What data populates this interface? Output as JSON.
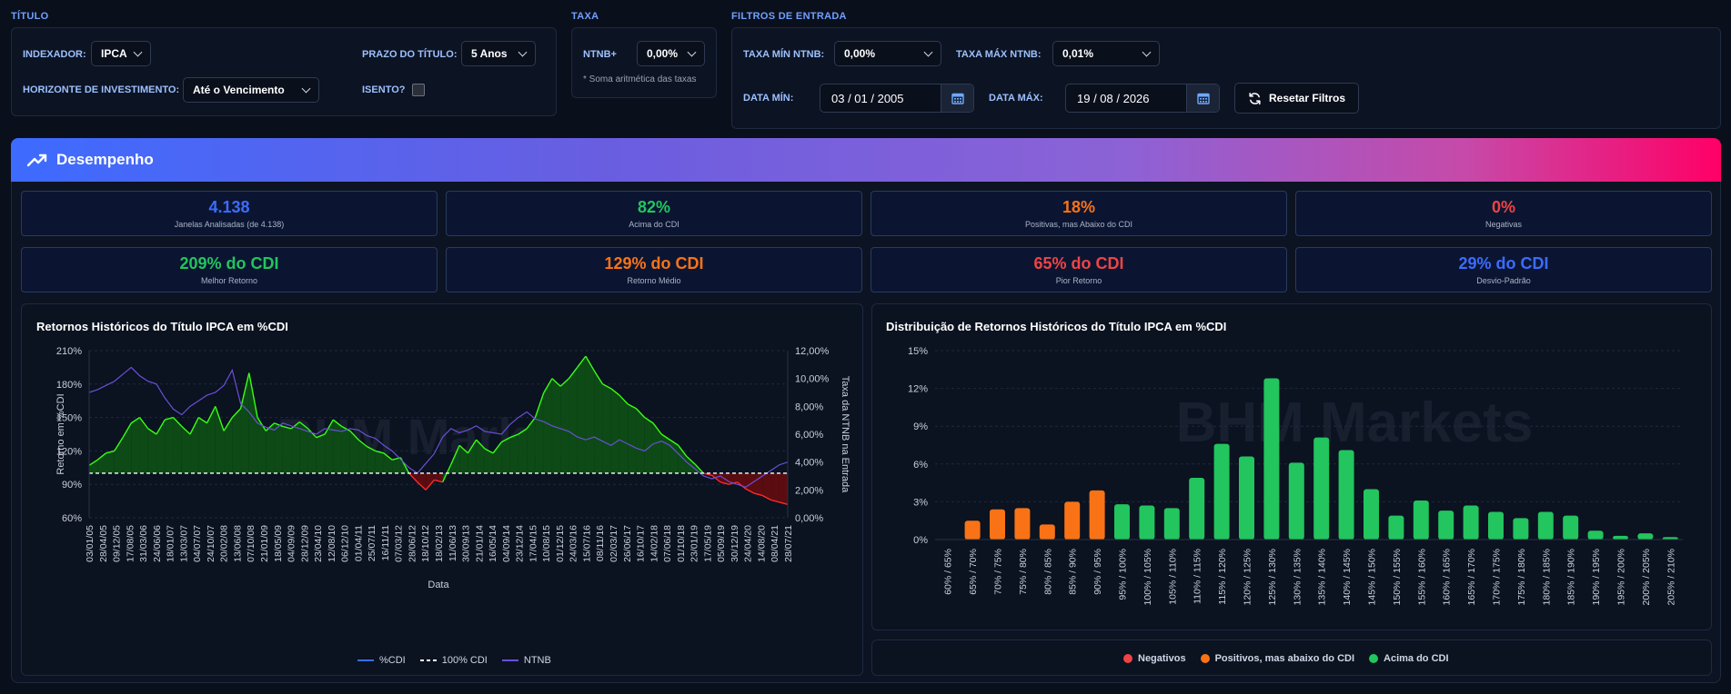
{
  "filters": {
    "titulo": {
      "section": "TÍTULO",
      "indexador_label": "INDEXADOR:",
      "indexador_value": "IPCA",
      "prazo_label": "PRAZO DO TÍTULO:",
      "prazo_value": "5 Anos",
      "horizonte_label": "HORIZONTE DE INVESTIMENTO:",
      "horizonte_value": "Até o Vencimento",
      "isento_label": "ISENTO?"
    },
    "taxa": {
      "section": "TAXA",
      "ntnb_label": "NTNB+",
      "ntnb_value": "0,00%",
      "note": "* Soma aritmética das taxas"
    },
    "entrada": {
      "section": "FILTROS DE ENTRADA",
      "taxa_min_label": "TAXA MÍN NTNB:",
      "taxa_min_value": "0,00%",
      "taxa_max_label": "TAXA MÁX NTNB:",
      "taxa_max_value": "0,01%",
      "data_min_label": "DATA MÍN:",
      "data_min_value": "03 / 01 / 2005",
      "data_max_label": "DATA MÁX:",
      "data_max_value": "19 / 08 / 2026",
      "reset_label": "Resetar Filtros"
    }
  },
  "banner": {
    "title": "Desempenho"
  },
  "stats": [
    {
      "value": "4.138",
      "label": "Janelas Analisadas (de 4.138)",
      "color": "#3b6cff"
    },
    {
      "value": "82%",
      "label": "Acima do CDI",
      "color": "#22c55e"
    },
    {
      "value": "18%",
      "label": "Positivas, mas Abaixo do CDI",
      "color": "#f97316"
    },
    {
      "value": "0%",
      "label": "Negativas",
      "color": "#ef4444"
    },
    {
      "value": "209% do CDI",
      "label": "Melhor Retorno",
      "color": "#22c55e"
    },
    {
      "value": "129% do CDI",
      "label": "Retorno Médio",
      "color": "#f97316"
    },
    {
      "value": "65% do CDI",
      "label": "Pior Retorno",
      "color": "#ef4444"
    },
    {
      "value": "29% do CDI",
      "label": "Desvio-Padrão",
      "color": "#3b6cff"
    }
  ],
  "watermark": "BHM Markets",
  "chart_data": [
    {
      "type": "line",
      "title": "Retornos Históricos do Título IPCA em %CDI",
      "xlabel": "Data",
      "ylabel": "Retorno em %CDI",
      "y2label": "Taxa da NTNB na Entrada",
      "ylim": [
        60,
        210
      ],
      "y2lim": [
        0,
        12
      ],
      "yticks": [
        "210%",
        "180%",
        "150%",
        "120%",
        "90%",
        "60%"
      ],
      "y2ticks": [
        "12,00%",
        "10,00%",
        "8,00%",
        "6,00%",
        "4,00%",
        "2,00%",
        "0,00%"
      ],
      "xticks": [
        "03/01/05",
        "28/04/05",
        "09/12/05",
        "17/08/05",
        "31/03/06",
        "24/06/06",
        "18/01/07",
        "13/03/07",
        "04/07/07",
        "24/10/07",
        "20/02/08",
        "13/06/08",
        "07/10/08",
        "21/01/09",
        "18/05/09",
        "04/09/09",
        "28/12/09",
        "23/04/10",
        "12/08/10",
        "06/12/10",
        "01/04/11",
        "25/07/11",
        "16/11/11",
        "07/03/12",
        "28/06/12",
        "18/10/12",
        "18/02/13",
        "11/06/13",
        "30/09/13",
        "21/01/14",
        "16/05/14",
        "04/09/14",
        "23/12/14",
        "17/04/15",
        "10/08/15",
        "01/12/15",
        "24/03/16",
        "15/07/16",
        "08/11/16",
        "02/03/17",
        "26/06/17",
        "16/10/17",
        "14/02/18",
        "07/06/18",
        "01/10/18",
        "23/01/19",
        "17/05/19",
        "05/09/19",
        "30/12/19",
        "24/04/20",
        "14/08/20",
        "08/04/21",
        "28/07/21"
      ],
      "reference_line": 100,
      "legend": [
        "%CDI",
        "100% CDI",
        "NTNB"
      ],
      "series": [
        {
          "name": "%CDI",
          "values": [
            107,
            112,
            118,
            120,
            132,
            145,
            150,
            140,
            135,
            148,
            150,
            142,
            135,
            150,
            145,
            160,
            138,
            150,
            158,
            190,
            150,
            138,
            145,
            142,
            140,
            146,
            140,
            132,
            135,
            148,
            142,
            138,
            130,
            124,
            120,
            118,
            112,
            114,
            100,
            92,
            85,
            94,
            92,
            108,
            125,
            118,
            130,
            122,
            118,
            128,
            132,
            135,
            140,
            150,
            172,
            185,
            178,
            185,
            195,
            205,
            192,
            180,
            176,
            170,
            162,
            158,
            150,
            145,
            135,
            130,
            125,
            115,
            108,
            100,
            98,
            92,
            90,
            92,
            86,
            82,
            80,
            76,
            74,
            72
          ]
        },
        {
          "name": "NTNB",
          "values": [
            9.0,
            9.2,
            9.5,
            9.8,
            10.3,
            10.8,
            10.2,
            9.8,
            9.6,
            8.6,
            7.8,
            7.4,
            8.0,
            8.4,
            8.8,
            9.0,
            9.5,
            10.6,
            8.2,
            7.6,
            6.8,
            6.5,
            6.3,
            6.8,
            6.6,
            6.4,
            6.2,
            6.0,
            6.4,
            6.3,
            6.2,
            6.4,
            6.3,
            5.9,
            5.7,
            5.2,
            4.8,
            4.2,
            3.6,
            3.2,
            3.9,
            4.6,
            5.8,
            6.4,
            6.1,
            6.3,
            6.6,
            6.2,
            6.1,
            6.0,
            6.7,
            7.2,
            7.6,
            7.1,
            6.9,
            6.6,
            6.4,
            6.2,
            5.8,
            5.6,
            5.8,
            5.5,
            5.2,
            5.6,
            5.3,
            5.0,
            4.8,
            5.3,
            5.5,
            5.2,
            4.6,
            4.0,
            3.5,
            3.0,
            2.8,
            3.0,
            2.6,
            2.4,
            2.2,
            2.6,
            3.0,
            3.4,
            3.8,
            4.0
          ]
        }
      ]
    },
    {
      "type": "bar",
      "title": "Distribuição de Retornos Históricos do Título IPCA em %CDI",
      "ylim": [
        0,
        15
      ],
      "yticks": [
        "15%",
        "12%",
        "9%",
        "6%",
        "3%",
        "0%"
      ],
      "categories": [
        "60% / 65%",
        "65% / 70%",
        "70% / 75%",
        "75% / 80%",
        "80% / 85%",
        "85% / 90%",
        "90% / 95%",
        "95% / 100%",
        "100% / 105%",
        "105% / 110%",
        "110% / 115%",
        "115% / 120%",
        "120% / 125%",
        "125% / 130%",
        "130% / 135%",
        "135% / 140%",
        "140% / 145%",
        "145% / 150%",
        "150% / 155%",
        "155% / 160%",
        "160% / 165%",
        "165% / 170%",
        "170% / 175%",
        "175% / 180%",
        "180% / 185%",
        "185% / 190%",
        "190% / 195%",
        "195% / 200%",
        "200% / 205%",
        "205% / 210%"
      ],
      "values": [
        0,
        1.5,
        2.4,
        2.5,
        1.2,
        3.0,
        3.9,
        2.8,
        2.7,
        2.5,
        4.9,
        7.6,
        6.6,
        12.8,
        6.1,
        8.1,
        7.1,
        4.0,
        1.9,
        3.1,
        2.3,
        2.7,
        2.2,
        1.7,
        2.2,
        1.9,
        0.7,
        0.3,
        0.5,
        0.2
      ],
      "bar_classes": [
        "pos",
        "pos",
        "pos",
        "pos",
        "pos",
        "pos",
        "pos",
        "above",
        "above",
        "above",
        "above",
        "above",
        "above",
        "above",
        "above",
        "above",
        "above",
        "above",
        "above",
        "above",
        "above",
        "above",
        "above",
        "above",
        "above",
        "above",
        "above",
        "above",
        "above",
        "above"
      ],
      "legend": [
        {
          "label": "Negativos",
          "color": "#ef4444"
        },
        {
          "label": "Positivos, mas abaixo do CDI",
          "color": "#f97316"
        },
        {
          "label": "Acima do CDI",
          "color": "#22c55e"
        }
      ]
    }
  ]
}
